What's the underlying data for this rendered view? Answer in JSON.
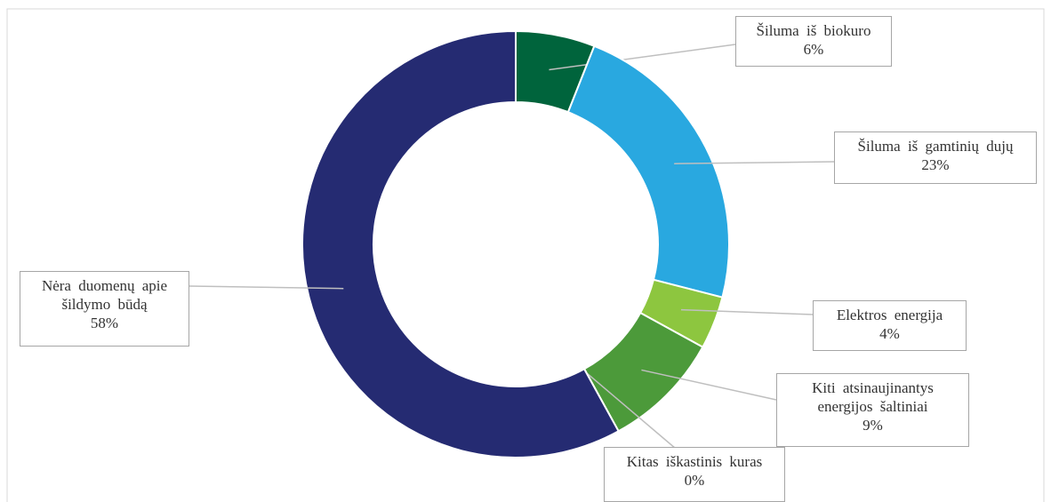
{
  "chart_data": {
    "type": "donut",
    "categories": [
      "Šiluma iš biokuro",
      "Šiluma iš gamtinių dujų",
      "Elektros energija",
      "Kiti atsinaujinantys energijos šaltiniai",
      "Kitas iškastinis kuras",
      "Nėra duomenų apie šildymo būdą"
    ],
    "values": [
      6,
      23,
      4,
      9,
      0,
      58
    ],
    "value_labels": [
      "6%",
      "23%",
      "4%",
      "9%",
      "0%",
      "58%"
    ],
    "colors": [
      "#00643c",
      "#29a8e0",
      "#8dc63f",
      "#4c9a3a",
      "#7f7f7f",
      "#252b72"
    ]
  }
}
